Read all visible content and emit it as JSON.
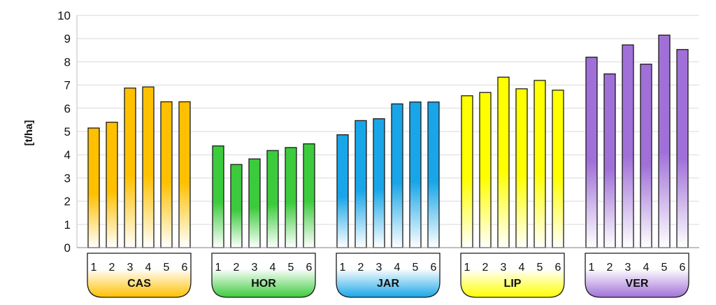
{
  "chart_data": {
    "type": "bar",
    "ylabel": "[t/ha]",
    "ylim": [
      0,
      10
    ],
    "yticks": [
      "0",
      "1",
      "2",
      "3",
      "4",
      "5",
      "6",
      "7",
      "8",
      "9",
      "10"
    ],
    "grid": true,
    "groups": [
      {
        "name": "CAS",
        "color": "#FFC000",
        "categories": [
          "1",
          "2",
          "3",
          "4",
          "5",
          "6"
        ],
        "values": [
          5.15,
          5.4,
          6.87,
          6.92,
          6.28,
          6.28
        ]
      },
      {
        "name": "HOR",
        "color": "#3CCB3C",
        "categories": [
          "1",
          "2",
          "3",
          "4",
          "5",
          "6"
        ],
        "values": [
          4.38,
          3.58,
          3.82,
          4.18,
          4.31,
          4.47
        ]
      },
      {
        "name": "JAR",
        "color": "#19A6E8",
        "categories": [
          "1",
          "2",
          "3",
          "4",
          "5",
          "6"
        ],
        "values": [
          4.86,
          5.47,
          5.55,
          6.19,
          6.27,
          6.27
        ]
      },
      {
        "name": "LIP",
        "color": "#FFFF00",
        "categories": [
          "1",
          "2",
          "3",
          "4",
          "5",
          "6"
        ],
        "values": [
          6.54,
          6.68,
          7.34,
          6.84,
          7.2,
          6.78
        ]
      },
      {
        "name": "VER",
        "color": "#A070D8",
        "categories": [
          "1",
          "2",
          "3",
          "4",
          "5",
          "6"
        ],
        "values": [
          8.2,
          7.48,
          8.73,
          7.9,
          9.15,
          8.53
        ]
      }
    ]
  }
}
